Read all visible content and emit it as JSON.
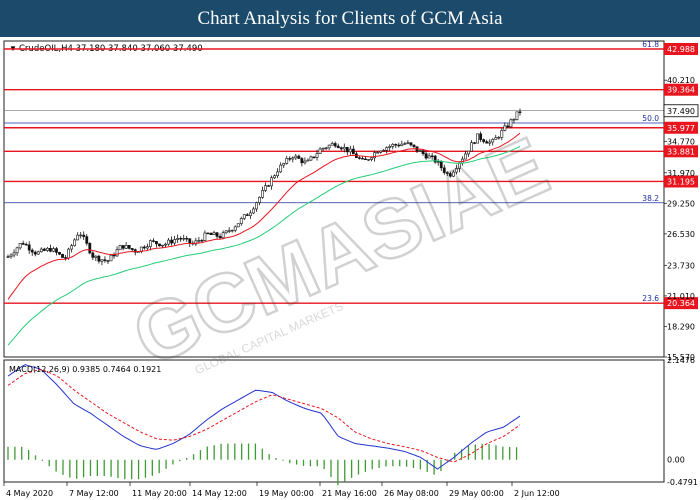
{
  "header": {
    "title": "Chart Analysis for Clients of GCM Asia"
  },
  "colors": {
    "header_bg": "#1b4a6b",
    "sr_line": "#e8141e",
    "fib_line": "#1e2fa0",
    "ema_red": "#e8141e",
    "ema_green": "#22cc77",
    "candle": "#111111",
    "macd_line": "#2233cc",
    "signal_line": "#e8141e",
    "histogram": "#3f9a35",
    "price_tag": "#ffffff"
  },
  "chart_data": [
    {
      "type": "candlestick",
      "symbol_line": "CrudeOIL,H4  37.180 37.840 37.060 37.490",
      "ylim": [
        15.57,
        43.7
      ],
      "y_ticks": [
        "40.210",
        "37.490",
        "34.770",
        "31.970",
        "29.250",
        "26.530",
        "23.730",
        "21.010",
        "18.290",
        "15.570"
      ],
      "x_ticks": [
        "4 May 2020",
        "7 May 12:00",
        "11 May 20:00",
        "14 May 12:00",
        "19 May 00:00",
        "21 May 16:00",
        "26 May 08:00",
        "29 May 00:00",
        "2 Jun 12:00"
      ],
      "current_price": "37.490",
      "levels": [
        {
          "label": "42.988",
          "value": 42.988
        },
        {
          "label": "39.364",
          "value": 39.364
        },
        {
          "label": "35.977",
          "value": 35.977
        },
        {
          "label": "33.881",
          "value": 33.881
        },
        {
          "label": "31.195",
          "value": 31.195
        },
        {
          "label": "20.364",
          "value": 20.364
        }
      ],
      "fibonacci": [
        {
          "label": "61.8",
          "value": 42.988
        },
        {
          "label": "50.0",
          "value": 36.4
        },
        {
          "label": "38.2",
          "value": 29.3
        },
        {
          "label": "23.6",
          "value": 20.364
        }
      ],
      "close_path": [
        24.5,
        25.8,
        24.8,
        25.2,
        24.3,
        26.8,
        24.5,
        24.1,
        25.5,
        25.0,
        25.8,
        25.6,
        26.2,
        25.6,
        26.5,
        26.3,
        27.3,
        28.5,
        30.4,
        32.3,
        33.5,
        32.8,
        34.1,
        34.6,
        33.9,
        32.9,
        34.0,
        34.4,
        34.6,
        33.8,
        33.1,
        31.7,
        33.4,
        35.2,
        34.6,
        36.0,
        37.49
      ]
    },
    {
      "type": "macd",
      "title": "MACD(12,26,9)  0.9385  0.7464  0.1921",
      "ylim": [
        -0.4791,
        2.1476
      ],
      "y_ticks": [
        "2.1476",
        "0.00",
        "-0.4791"
      ],
      "macd_path": [
        1.8,
        2.05,
        1.95,
        1.6,
        1.2,
        1.0,
        0.75,
        0.5,
        0.3,
        0.22,
        0.35,
        0.55,
        0.85,
        1.1,
        1.3,
        1.5,
        1.45,
        1.25,
        1.1,
        1.0,
        0.5,
        0.35,
        0.3,
        0.25,
        0.18,
        0.05,
        -0.2,
        0.05,
        0.35,
        0.6,
        0.7,
        0.94
      ],
      "signal_path": [
        1.6,
        1.85,
        1.95,
        1.8,
        1.5,
        1.25,
        1.0,
        0.8,
        0.6,
        0.45,
        0.42,
        0.5,
        0.65,
        0.85,
        1.05,
        1.25,
        1.4,
        1.3,
        1.2,
        1.1,
        0.9,
        0.6,
        0.45,
        0.35,
        0.28,
        0.2,
        0.05,
        -0.05,
        0.12,
        0.35,
        0.5,
        0.75
      ]
    }
  ],
  "watermark": {
    "brand": "GCMASIAE",
    "tagline": "GLOBAL CAPITAL MARKETS"
  }
}
